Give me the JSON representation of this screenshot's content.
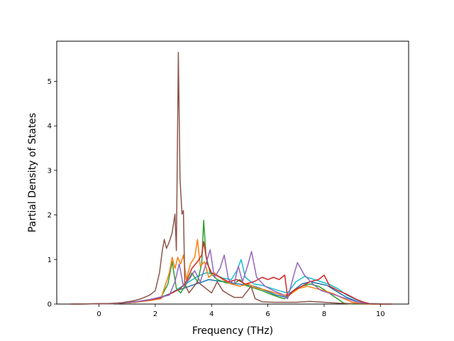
{
  "chart_data": {
    "type": "line",
    "xlabel": "Frequency (THz)",
    "ylabel": "Partial Density of States",
    "xlim": [
      -1.5,
      11.0
    ],
    "ylim": [
      0,
      5.9
    ],
    "xticks": [
      0,
      2,
      4,
      6,
      8,
      10
    ],
    "yticks": [
      0,
      1,
      2,
      3,
      4,
      5
    ],
    "grid": false,
    "legend": "none",
    "series": [
      {
        "color": "#1f77b4",
        "points": [
          [
            -1.0,
            0
          ],
          [
            0.5,
            0.01
          ],
          [
            1.3,
            0.04
          ],
          [
            1.8,
            0.1
          ],
          [
            2.2,
            0.15
          ],
          [
            2.5,
            0.22
          ],
          [
            2.7,
            0.3
          ],
          [
            3.0,
            0.35
          ],
          [
            3.3,
            0.42
          ],
          [
            3.6,
            0.48
          ],
          [
            3.9,
            0.55
          ],
          [
            4.2,
            0.52
          ],
          [
            4.5,
            0.5
          ],
          [
            4.8,
            0.46
          ],
          [
            5.1,
            0.44
          ],
          [
            5.4,
            0.42
          ],
          [
            5.7,
            0.36
          ],
          [
            6.0,
            0.28
          ],
          [
            6.3,
            0.2
          ],
          [
            6.6,
            0.16
          ],
          [
            6.9,
            0.3
          ],
          [
            7.2,
            0.45
          ],
          [
            7.5,
            0.5
          ],
          [
            7.8,
            0.46
          ],
          [
            8.1,
            0.42
          ],
          [
            8.4,
            0.3
          ],
          [
            8.8,
            0.15
          ],
          [
            9.2,
            0.05
          ],
          [
            9.6,
            0.01
          ],
          [
            10.4,
            0
          ]
        ]
      },
      {
        "color": "#17becf",
        "points": [
          [
            -1.0,
            0
          ],
          [
            0.5,
            0.01
          ],
          [
            1.3,
            0.05
          ],
          [
            1.8,
            0.1
          ],
          [
            2.2,
            0.16
          ],
          [
            2.6,
            0.25
          ],
          [
            2.9,
            0.38
          ],
          [
            3.2,
            0.5
          ],
          [
            3.5,
            0.62
          ],
          [
            3.8,
            0.7
          ],
          [
            4.1,
            0.68
          ],
          [
            4.4,
            0.58
          ],
          [
            4.7,
            0.55
          ],
          [
            4.9,
            0.75
          ],
          [
            5.05,
            1.0
          ],
          [
            5.2,
            0.6
          ],
          [
            5.5,
            0.45
          ],
          [
            5.8,
            0.42
          ],
          [
            6.1,
            0.36
          ],
          [
            6.4,
            0.3
          ],
          [
            6.7,
            0.25
          ],
          [
            7.0,
            0.5
          ],
          [
            7.3,
            0.62
          ],
          [
            7.6,
            0.56
          ],
          [
            7.9,
            0.5
          ],
          [
            8.2,
            0.44
          ],
          [
            8.5,
            0.34
          ],
          [
            8.8,
            0.2
          ],
          [
            9.2,
            0.08
          ],
          [
            9.6,
            0.01
          ],
          [
            10.4,
            0
          ]
        ]
      },
      {
        "color": "#2ca02c",
        "points": [
          [
            -1.0,
            0
          ],
          [
            0.5,
            0.01
          ],
          [
            1.3,
            0.05
          ],
          [
            1.8,
            0.1
          ],
          [
            2.2,
            0.15
          ],
          [
            2.45,
            0.45
          ],
          [
            2.6,
            0.95
          ],
          [
            2.75,
            0.35
          ],
          [
            2.9,
            0.25
          ],
          [
            3.1,
            0.45
          ],
          [
            3.3,
            0.7
          ],
          [
            3.5,
            0.5
          ],
          [
            3.65,
            0.9
          ],
          [
            3.72,
            1.88
          ],
          [
            3.8,
            1.1
          ],
          [
            3.95,
            0.7
          ],
          [
            4.2,
            0.55
          ],
          [
            4.5,
            0.48
          ],
          [
            4.8,
            0.45
          ],
          [
            5.0,
            0.55
          ],
          [
            5.2,
            0.42
          ],
          [
            5.5,
            0.36
          ],
          [
            5.8,
            0.3
          ],
          [
            6.1,
            0.22
          ],
          [
            6.4,
            0.15
          ],
          [
            6.6,
            0.12
          ],
          [
            6.9,
            0.28
          ],
          [
            7.2,
            0.4
          ],
          [
            7.5,
            0.45
          ],
          [
            7.8,
            0.4
          ],
          [
            8.1,
            0.28
          ],
          [
            8.4,
            0.15
          ],
          [
            8.7,
            0.02
          ],
          [
            9.0,
            0
          ],
          [
            10.4,
            0
          ]
        ]
      },
      {
        "color": "#ff7f0e",
        "points": [
          [
            -1.0,
            0
          ],
          [
            0.5,
            0.01
          ],
          [
            1.3,
            0.04
          ],
          [
            1.8,
            0.08
          ],
          [
            2.2,
            0.12
          ],
          [
            2.5,
            0.7
          ],
          [
            2.6,
            1.05
          ],
          [
            2.7,
            0.8
          ],
          [
            2.8,
            1.05
          ],
          [
            2.9,
            0.9
          ],
          [
            3.0,
            1.1
          ],
          [
            3.1,
            0.55
          ],
          [
            3.25,
            0.9
          ],
          [
            3.4,
            1.05
          ],
          [
            3.5,
            1.45
          ],
          [
            3.6,
            0.85
          ],
          [
            3.75,
            0.95
          ],
          [
            3.9,
            0.6
          ],
          [
            4.1,
            0.7
          ],
          [
            4.4,
            0.55
          ],
          [
            4.7,
            0.45
          ],
          [
            5.0,
            0.4
          ],
          [
            5.3,
            0.45
          ],
          [
            5.6,
            0.36
          ],
          [
            5.9,
            0.32
          ],
          [
            6.2,
            0.26
          ],
          [
            6.5,
            0.2
          ],
          [
            6.8,
            0.22
          ],
          [
            7.1,
            0.35
          ],
          [
            7.4,
            0.4
          ],
          [
            7.7,
            0.35
          ],
          [
            8.0,
            0.3
          ],
          [
            8.3,
            0.24
          ],
          [
            8.6,
            0.15
          ],
          [
            9.0,
            0.04
          ],
          [
            9.4,
            0
          ],
          [
            10.4,
            0
          ]
        ]
      },
      {
        "color": "#d62728",
        "points": [
          [
            -1.0,
            0
          ],
          [
            0.5,
            0.01
          ],
          [
            1.3,
            0.05
          ],
          [
            1.8,
            0.09
          ],
          [
            2.2,
            0.14
          ],
          [
            2.6,
            0.25
          ],
          [
            2.9,
            0.35
          ],
          [
            3.1,
            0.5
          ],
          [
            3.3,
            0.8
          ],
          [
            3.5,
            0.95
          ],
          [
            3.65,
            1.1
          ],
          [
            3.72,
            1.4
          ],
          [
            3.85,
            0.9
          ],
          [
            4.0,
            0.7
          ],
          [
            4.3,
            0.6
          ],
          [
            4.6,
            0.5
          ],
          [
            4.9,
            0.55
          ],
          [
            5.2,
            0.45
          ],
          [
            5.5,
            0.5
          ],
          [
            5.8,
            0.6
          ],
          [
            6.0,
            0.55
          ],
          [
            6.2,
            0.6
          ],
          [
            6.4,
            0.55
          ],
          [
            6.6,
            0.65
          ],
          [
            6.7,
            0.15
          ],
          [
            6.9,
            0.3
          ],
          [
            7.2,
            0.4
          ],
          [
            7.5,
            0.5
          ],
          [
            7.8,
            0.55
          ],
          [
            8.0,
            0.65
          ],
          [
            8.2,
            0.4
          ],
          [
            8.5,
            0.3
          ],
          [
            8.8,
            0.22
          ],
          [
            9.1,
            0.12
          ],
          [
            9.4,
            0.04
          ],
          [
            9.7,
            0
          ],
          [
            10.4,
            0
          ]
        ]
      },
      {
        "color": "#9467bd",
        "points": [
          [
            -1.0,
            0
          ],
          [
            0.5,
            0.01
          ],
          [
            1.3,
            0.05
          ],
          [
            1.8,
            0.1
          ],
          [
            2.2,
            0.16
          ],
          [
            2.5,
            0.2
          ],
          [
            2.7,
            0.5
          ],
          [
            2.85,
            0.9
          ],
          [
            3.0,
            0.4
          ],
          [
            3.2,
            0.55
          ],
          [
            3.4,
            0.75
          ],
          [
            3.6,
            0.5
          ],
          [
            3.8,
            0.9
          ],
          [
            3.95,
            1.22
          ],
          [
            4.1,
            0.6
          ],
          [
            4.3,
            0.8
          ],
          [
            4.45,
            1.1
          ],
          [
            4.6,
            0.55
          ],
          [
            4.8,
            0.45
          ],
          [
            4.95,
            0.85
          ],
          [
            5.1,
            0.5
          ],
          [
            5.3,
            0.9
          ],
          [
            5.42,
            1.18
          ],
          [
            5.6,
            0.6
          ],
          [
            5.9,
            0.4
          ],
          [
            6.2,
            0.3
          ],
          [
            6.5,
            0.22
          ],
          [
            6.7,
            0.12
          ],
          [
            6.9,
            0.6
          ],
          [
            7.05,
            0.93
          ],
          [
            7.3,
            0.65
          ],
          [
            7.6,
            0.45
          ],
          [
            7.9,
            0.3
          ],
          [
            8.2,
            0.24
          ],
          [
            8.5,
            0.18
          ],
          [
            8.8,
            0.12
          ],
          [
            9.1,
            0.06
          ],
          [
            9.5,
            0.01
          ],
          [
            10.4,
            0
          ]
        ]
      },
      {
        "color": "#8c564b",
        "points": [
          [
            -1.0,
            0
          ],
          [
            0.3,
            0.01
          ],
          [
            0.8,
            0.03
          ],
          [
            1.2,
            0.07
          ],
          [
            1.5,
            0.12
          ],
          [
            1.8,
            0.2
          ],
          [
            2.0,
            0.3
          ],
          [
            2.15,
            0.7
          ],
          [
            2.25,
            1.2
          ],
          [
            2.32,
            1.45
          ],
          [
            2.4,
            1.25
          ],
          [
            2.5,
            1.4
          ],
          [
            2.6,
            1.6
          ],
          [
            2.7,
            2.02
          ],
          [
            2.75,
            1.2
          ],
          [
            2.82,
            5.65
          ],
          [
            2.88,
            2.8
          ],
          [
            2.95,
            2.02
          ],
          [
            3.0,
            2.1
          ],
          [
            3.05,
            0.45
          ],
          [
            3.2,
            0.25
          ],
          [
            3.5,
            0.5
          ],
          [
            3.8,
            0.35
          ],
          [
            4.0,
            0.25
          ],
          [
            4.2,
            0.5
          ],
          [
            4.4,
            0.3
          ],
          [
            4.6,
            0.22
          ],
          [
            4.8,
            0.15
          ],
          [
            5.1,
            0.15
          ],
          [
            5.4,
            0.4
          ],
          [
            5.55,
            0.12
          ],
          [
            5.8,
            0.05
          ],
          [
            6.2,
            0.04
          ],
          [
            7.0,
            0.04
          ],
          [
            7.5,
            0.06
          ],
          [
            8.0,
            0.04
          ],
          [
            8.5,
            0.02
          ],
          [
            9.0,
            0.01
          ],
          [
            10.4,
            0
          ]
        ]
      }
    ]
  }
}
